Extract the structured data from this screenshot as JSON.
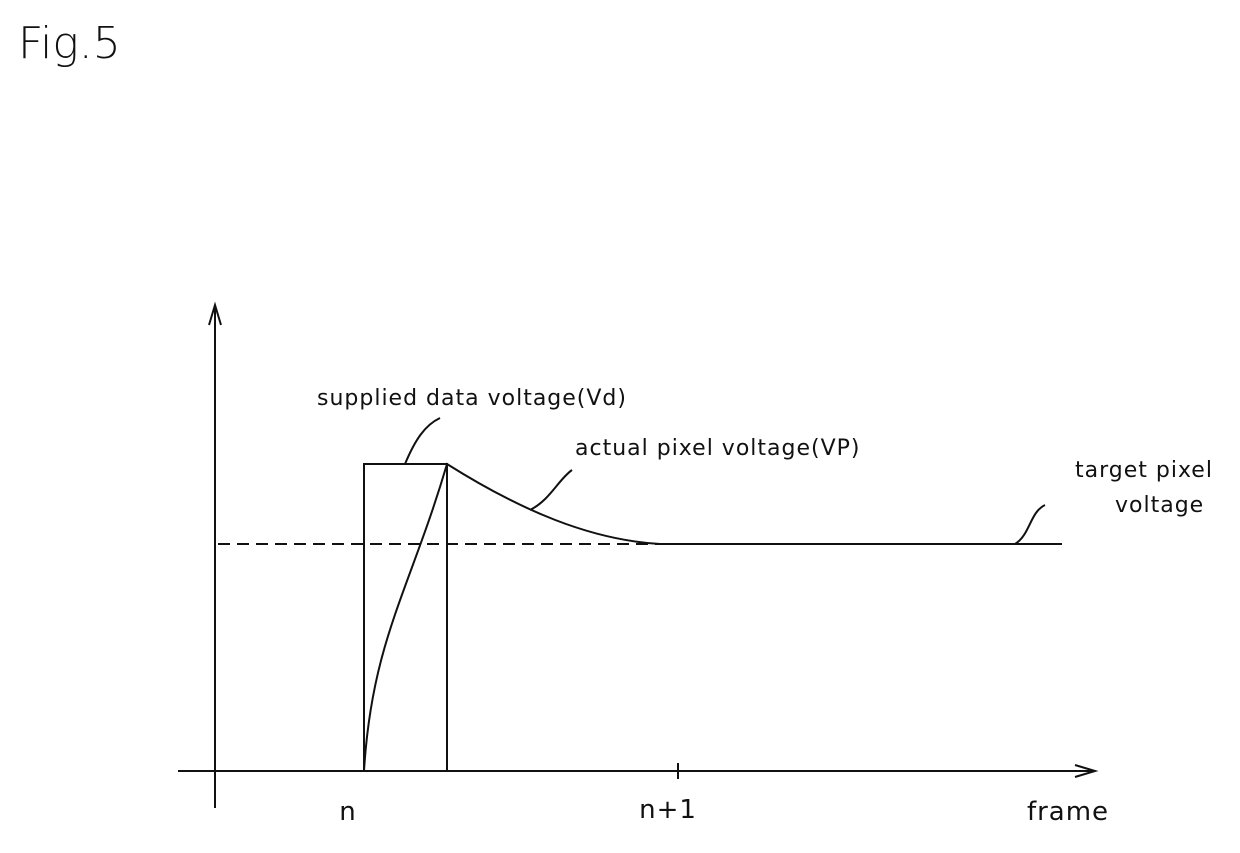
{
  "figure": {
    "label": "Fig.5"
  },
  "annotations": {
    "supplied": "supplied data voltage(Vd)",
    "actual": "actual pixel voltage(VP)",
    "target": [
      "target pixel",
      "voltage"
    ]
  },
  "axis": {
    "ticks": [
      "n",
      "n+1"
    ],
    "x_label": "frame"
  }
}
